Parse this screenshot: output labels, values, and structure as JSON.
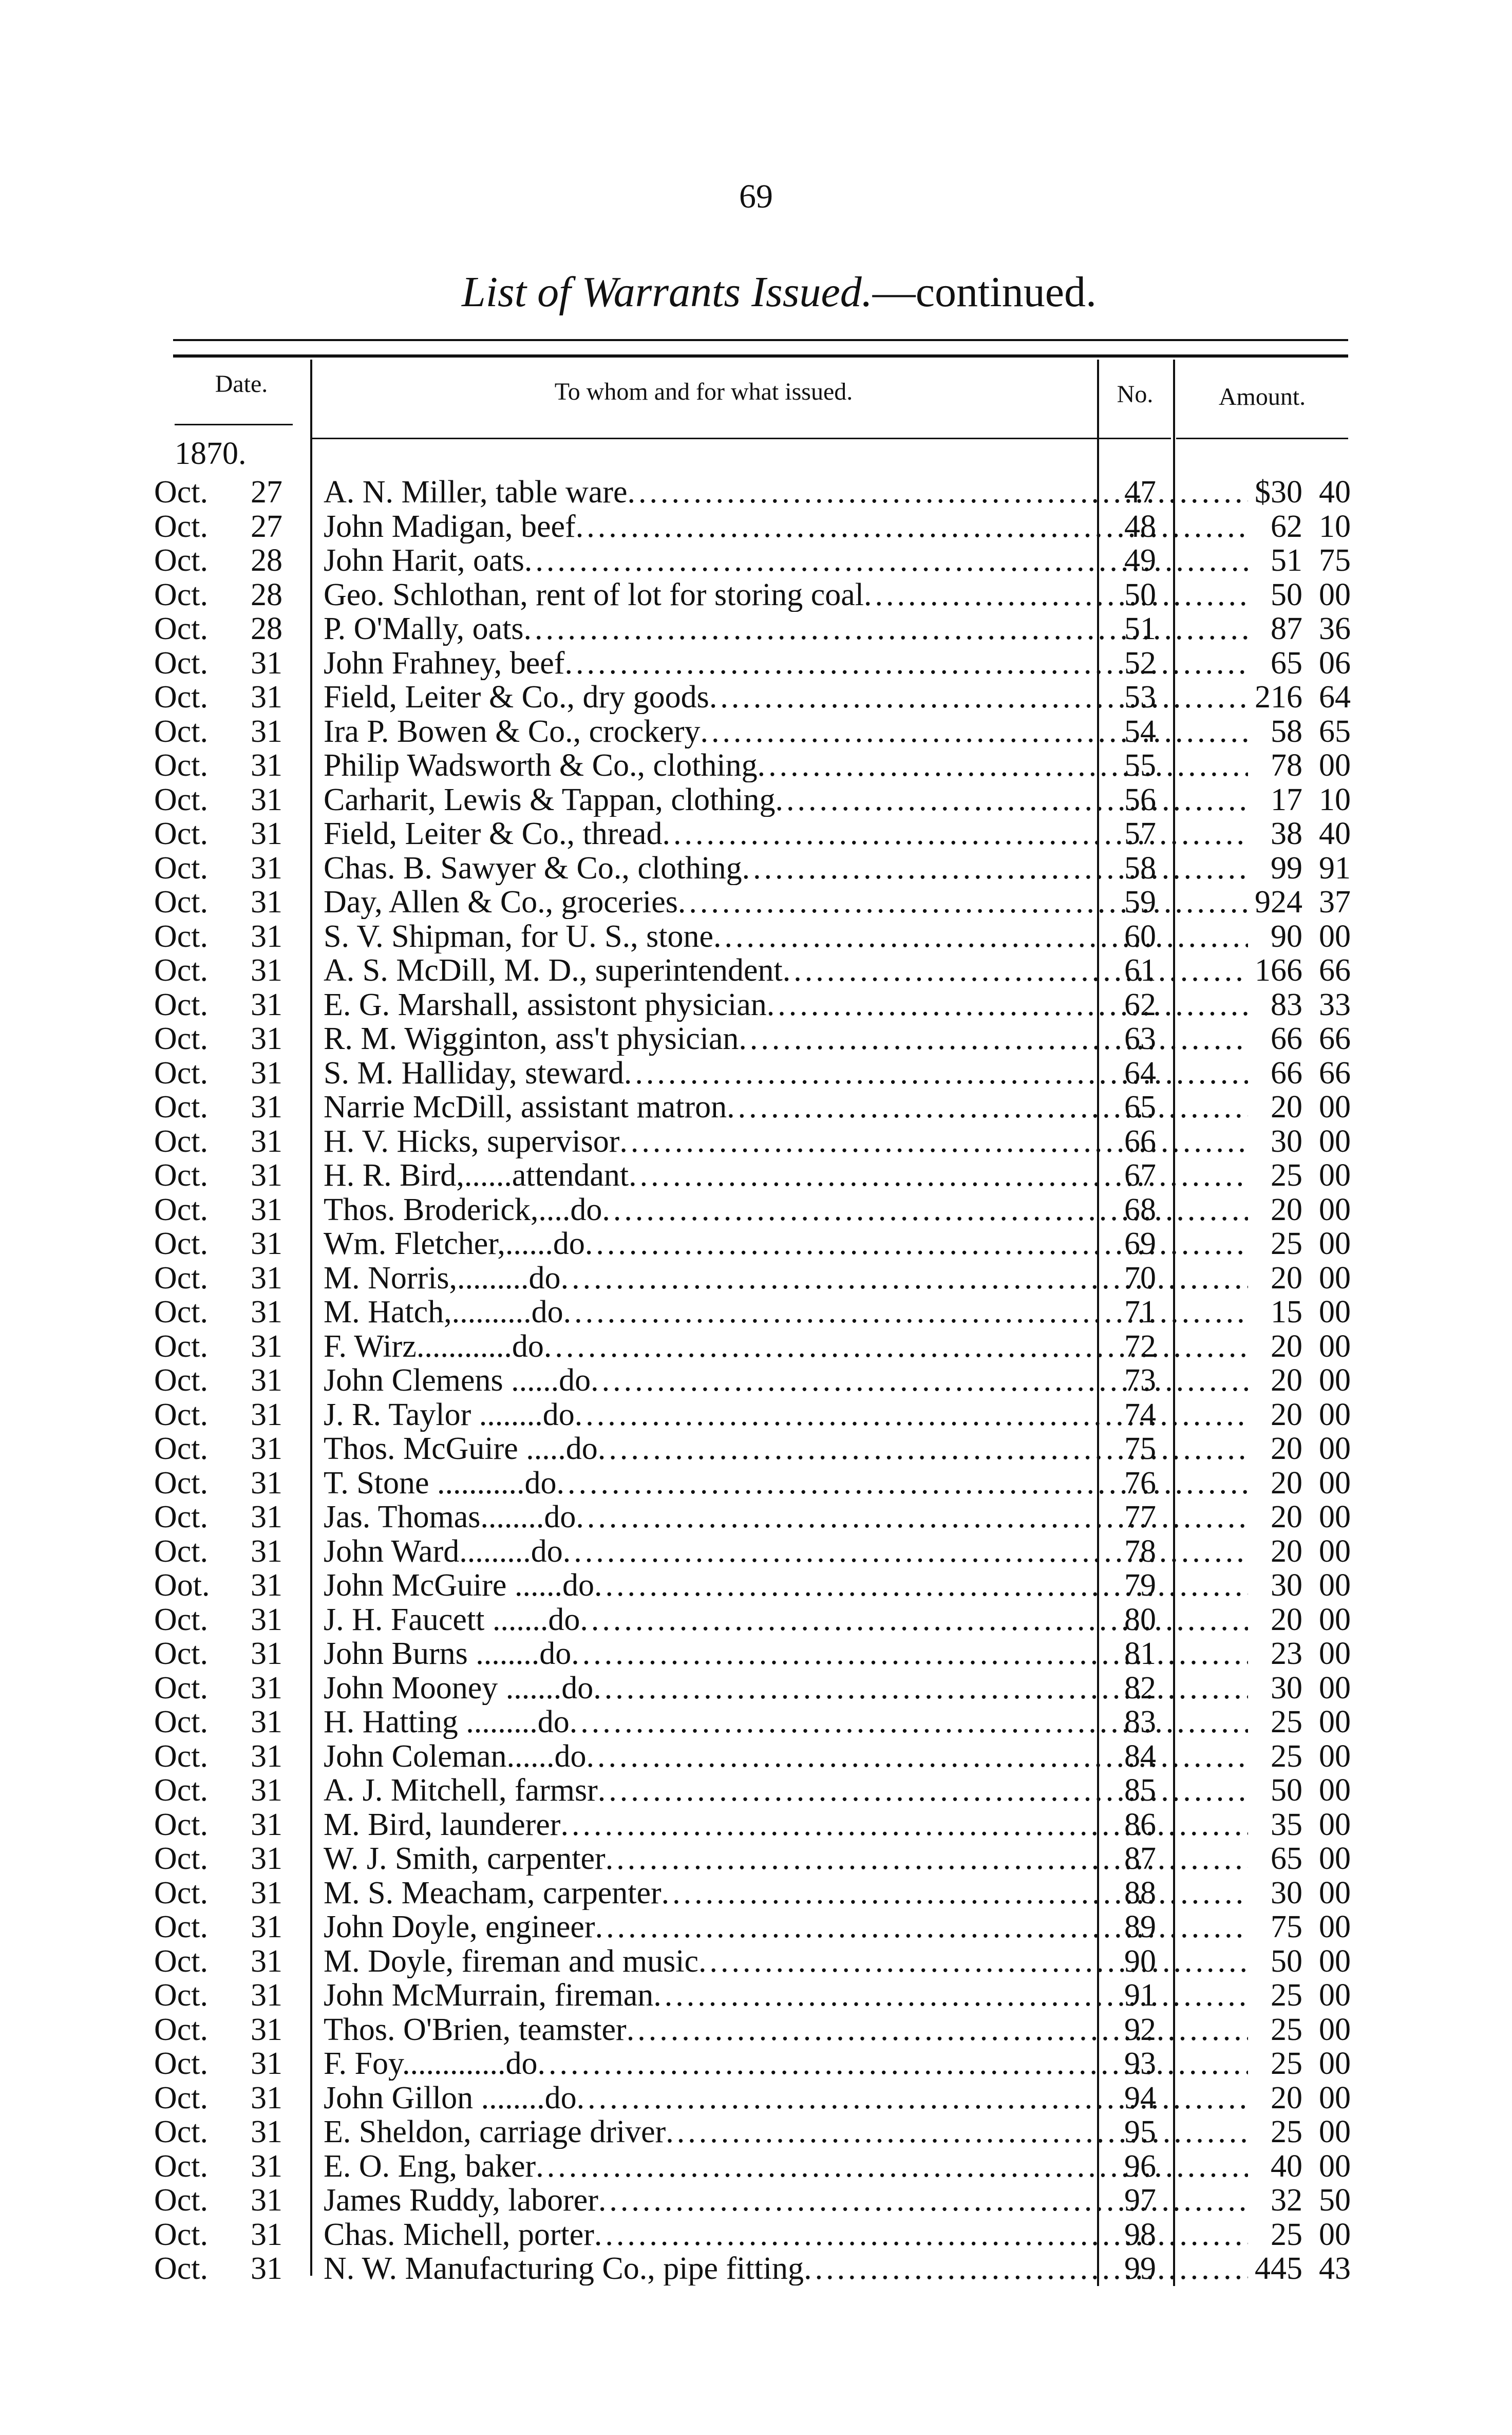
{
  "page_number": "69",
  "title": {
    "italic": "List of Warrants Issued.",
    "rest": "—continued."
  },
  "headers": {
    "date": "Date.",
    "description": "To whom and for what issued.",
    "no": "No.",
    "amount": "Amount."
  },
  "year": "1870.",
  "rows": [
    [
      "Oct.",
      "27",
      "A. N. Miller, table ware",
      "47",
      "$30",
      "40"
    ],
    [
      "Oct.",
      "27",
      "John Madigan, beef",
      "48",
      "62",
      "10"
    ],
    [
      "Oct.",
      "28",
      "John Harit, oats",
      "49",
      "51",
      "75"
    ],
    [
      "Oct.",
      "28",
      "Geo. Schlothan, rent of lot for storing coal",
      "50",
      "50",
      "00"
    ],
    [
      "Oct.",
      "28",
      "P. O'Mally, oats",
      "51",
      "87",
      "36"
    ],
    [
      "Oct.",
      "31",
      "John Frahney, beef",
      "52",
      "65",
      "06"
    ],
    [
      "Oct.",
      "31",
      "Field, Leiter & Co., dry goods",
      "53",
      "216",
      "64"
    ],
    [
      "Oct.",
      "31",
      "Ira P. Bowen & Co., crockery",
      "54",
      "58",
      "65"
    ],
    [
      "Oct.",
      "31",
      "Philip Wadsworth & Co., clothing",
      "55",
      "78",
      "00"
    ],
    [
      "Oct.",
      "31",
      "Carharit, Lewis & Tappan, clothing",
      "56",
      "17",
      "10"
    ],
    [
      "Oct.",
      "31",
      "Field, Leiter & Co., thread",
      "57",
      "38",
      "40"
    ],
    [
      "Oct.",
      "31",
      "Chas. B. Sawyer & Co., clothing",
      "58",
      "99",
      "91"
    ],
    [
      "Oct.",
      "31",
      "Day, Allen & Co., groceries",
      "59",
      "924",
      "37"
    ],
    [
      "Oct.",
      "31",
      "S. V. Shipman, for U. S., stone",
      "60",
      "90",
      "00"
    ],
    [
      "Oct.",
      "31",
      "A. S. McDill, M. D., superintendent",
      "61",
      "166",
      "66"
    ],
    [
      "Oct.",
      "31",
      "E. G. Marshall, assistont physician",
      "62",
      "83",
      "33"
    ],
    [
      "Oct.",
      "31",
      "R. M. Wigginton, ass't physician",
      "63",
      "66",
      "66"
    ],
    [
      "Oct.",
      "31",
      "S. M. Halliday, steward",
      "64",
      "66",
      "66"
    ],
    [
      "Oct.",
      "31",
      "Narrie McDill, assistant matron",
      "65",
      "20",
      "00"
    ],
    [
      "Oct.",
      "31",
      "H. V. Hicks, supervisor",
      "66",
      "30",
      "00"
    ],
    [
      "Oct.",
      "31",
      "H. R. Bird,......attendant",
      "67",
      "25",
      "00"
    ],
    [
      "Oct.",
      "31",
      "Thos. Broderick,....do",
      "68",
      "20",
      "00"
    ],
    [
      "Oct.",
      "31",
      "Wm. Fletcher,......do",
      "69",
      "25",
      "00"
    ],
    [
      "Oct.",
      "31",
      "M. Norris,.........do",
      "70",
      "20",
      "00"
    ],
    [
      "Oct.",
      "31",
      "M. Hatch,..........do",
      "71",
      "15",
      "00"
    ],
    [
      "Oct.",
      "31",
      "F. Wirz............do",
      "72",
      "20",
      "00"
    ],
    [
      "Oct.",
      "31",
      "John Clemens ......do",
      "73",
      "20",
      "00"
    ],
    [
      "Oct.",
      "31",
      "J. R. Taylor ........do",
      "74",
      "20",
      "00"
    ],
    [
      "Oct.",
      "31",
      "Thos. McGuire .....do",
      "75",
      "20",
      "00"
    ],
    [
      "Oct.",
      "31",
      "T. Stone ...........do",
      "76",
      "20",
      "00"
    ],
    [
      "Oct.",
      "31",
      "Jas. Thomas........do",
      "77",
      "20",
      "00"
    ],
    [
      "Oct.",
      "31",
      "John Ward.........do",
      "78",
      "20",
      "00"
    ],
    [
      "Oot.",
      "31",
      "John McGuire ......do",
      "79",
      "30",
      "00"
    ],
    [
      "Oct.",
      "31",
      "J. H. Faucett .......do",
      "80",
      "20",
      "00"
    ],
    [
      "Oct.",
      "31",
      "John Burns ........do",
      "81",
      "23",
      "00"
    ],
    [
      "Oct.",
      "31",
      "John Mooney .......do",
      "82",
      "30",
      "00"
    ],
    [
      "Oct.",
      "31",
      "H. Hatting .........do",
      "83",
      "25",
      "00"
    ],
    [
      "Oct.",
      "31",
      "John Coleman......do",
      "84",
      "25",
      "00"
    ],
    [
      "Oct.",
      "31",
      "A. J. Mitchell, farmsr",
      "85",
      "50",
      "00"
    ],
    [
      "Oct.",
      "31",
      "M. Bird, launderer",
      "86",
      "35",
      "00"
    ],
    [
      "Oct.",
      "31",
      "W. J. Smith, carpenter",
      "87",
      "65",
      "00"
    ],
    [
      "Oct.",
      "31",
      "M. S. Meacham, carpenter",
      "88",
      "30",
      "00"
    ],
    [
      "Oct.",
      "31",
      "John Doyle, engineer",
      "89",
      "75",
      "00"
    ],
    [
      "Oct.",
      "31",
      "M. Doyle, fireman and music",
      "90",
      "50",
      "00"
    ],
    [
      "Oct.",
      "31",
      "John McMurrain, fireman",
      "91",
      "25",
      "00"
    ],
    [
      "Oct.",
      "31",
      "Thos. O'Brien, teamster",
      "92",
      "25",
      "00"
    ],
    [
      "Oct.",
      "31",
      "F. Foy.............do",
      "93",
      "25",
      "00"
    ],
    [
      "Oct.",
      "31",
      "John Gillon ........do",
      "94",
      "20",
      "00"
    ],
    [
      "Oct.",
      "31",
      "E. Sheldon, carriage driver",
      "95",
      "25",
      "00"
    ],
    [
      "Oct.",
      "31",
      "E. O. Eng, baker",
      "96",
      "40",
      "00"
    ],
    [
      "Oct.",
      "31",
      "James Ruddy, laborer",
      "97",
      "32",
      "50"
    ],
    [
      "Oct.",
      "31",
      "Chas. Michell, porter",
      "98",
      "25",
      "00"
    ],
    [
      "Oct.",
      "31",
      "N. W. Manufacturing Co., pipe fitting",
      "99",
      "445",
      "43"
    ]
  ]
}
